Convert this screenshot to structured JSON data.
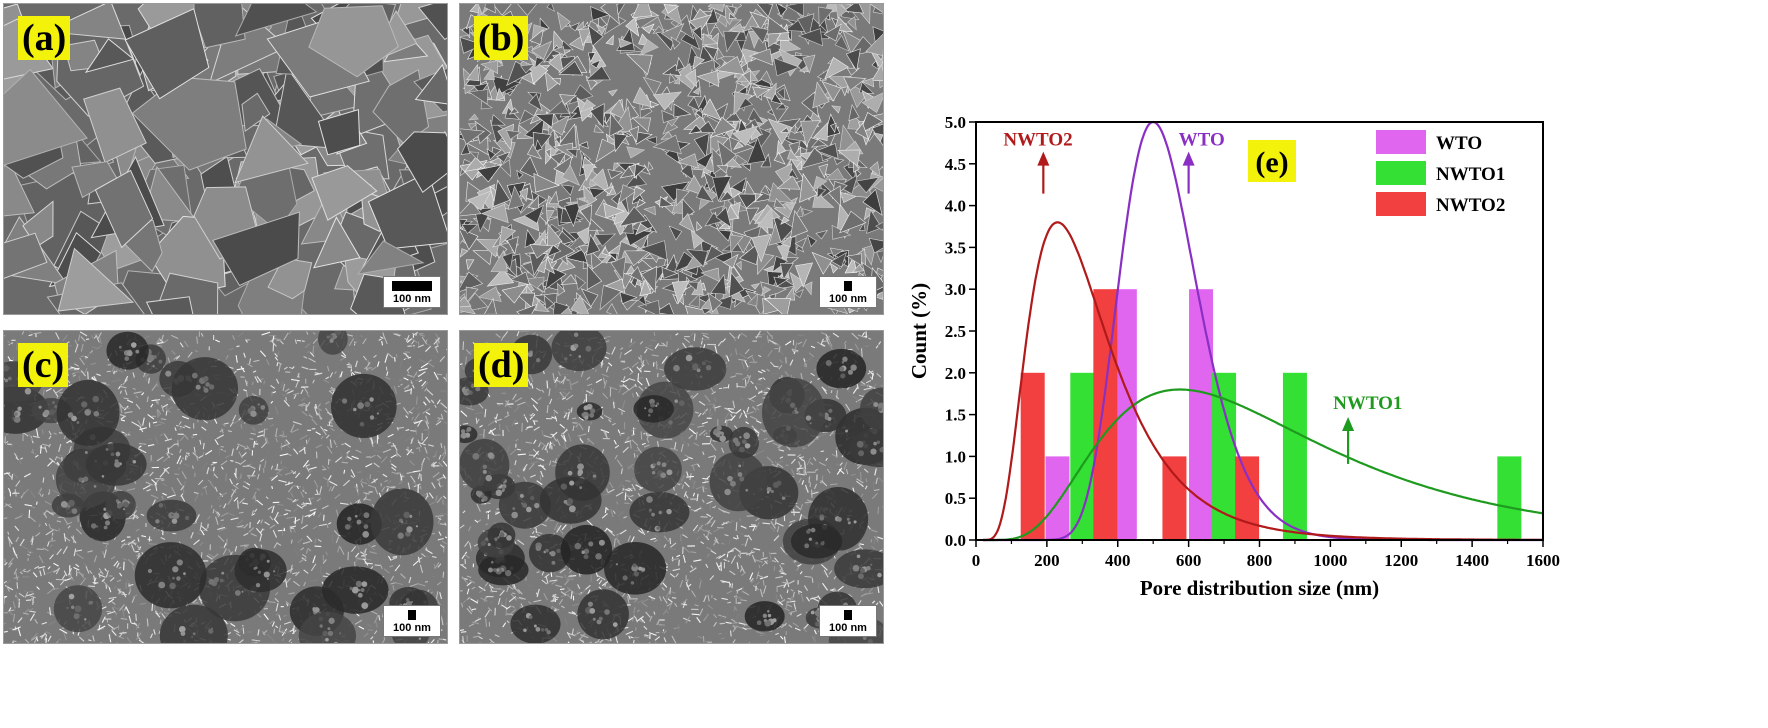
{
  "panels": [
    {
      "label": "(a)",
      "scale": "100 nm",
      "texture": "coarse"
    },
    {
      "label": "(b)",
      "scale": "100 nm",
      "texture": "flakes"
    },
    {
      "label": "(c)",
      "scale": "100 nm",
      "texture": "patches"
    },
    {
      "label": "(d)",
      "scale": "100 nm",
      "texture": "dense"
    }
  ],
  "chart_data": {
    "type": "bar",
    "panel_label": "(e)",
    "xlabel": "Pore distribution size (nm)",
    "ylabel": "Count (%)",
    "xlim": [
      0,
      1600
    ],
    "ylim": [
      0,
      5.0
    ],
    "xticks": [
      0,
      200,
      400,
      600,
      800,
      1000,
      1200,
      1400,
      1600
    ],
    "yticks": [
      0.0,
      0.5,
      1.0,
      1.5,
      2.0,
      2.5,
      3.0,
      3.5,
      4.0,
      4.5,
      5.0
    ],
    "legend_position": "top-right",
    "series": [
      {
        "name": "WTO",
        "color": "#e066f0",
        "curve_color": "#8a2fc4",
        "bars": [
          {
            "x": 230,
            "y": 1
          },
          {
            "x": 420,
            "y": 3
          },
          {
            "x": 635,
            "y": 3
          }
        ],
        "curve": {
          "peak_x": 500,
          "peak_y": 5.0
        }
      },
      {
        "name": "NWTO1",
        "color": "#33e033",
        "curve_color": "#1e9a1e",
        "bars": [
          {
            "x": 300,
            "y": 2
          },
          {
            "x": 700,
            "y": 2
          },
          {
            "x": 900,
            "y": 2
          },
          {
            "x": 1505,
            "y": 1
          }
        ],
        "curve": {
          "peak_x": 575,
          "peak_y": 1.8
        }
      },
      {
        "name": "NWTO2",
        "color": "#f24040",
        "curve_color": "#b01a1a",
        "bars": [
          {
            "x": 160,
            "y": 2
          },
          {
            "x": 365,
            "y": 3
          },
          {
            "x": 560,
            "y": 1
          },
          {
            "x": 765,
            "y": 1
          }
        ],
        "curve": {
          "peak_x": 230,
          "peak_y": 3.8
        }
      }
    ],
    "annotations": [
      {
        "text": "NWTO2",
        "series": "NWTO2",
        "at_x": 190,
        "at_y": 4.0
      },
      {
        "text": "WTO",
        "series": "WTO",
        "at_x": 600,
        "at_y": 4.0
      },
      {
        "text": "NWTO1",
        "series": "NWTO1",
        "at_x": 1050,
        "at_y": 0.85
      }
    ]
  }
}
